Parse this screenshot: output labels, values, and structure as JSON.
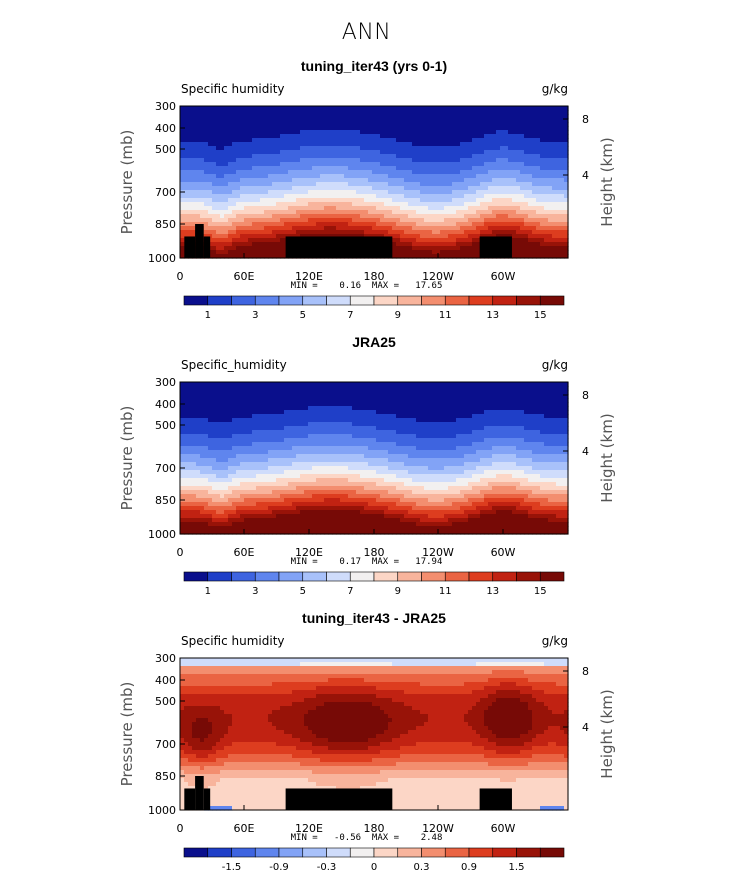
{
  "suptitle": "ANN",
  "chart_data": [
    {
      "type": "heatmap",
      "title": "tuning_iter43 (yrs 0-1)",
      "left_label": "Specific humidity",
      "right_label": "g/kg",
      "ylabel": "Pressure (mb)",
      "ylabel_right": "Height (km)",
      "y_ticks": [
        "300",
        "400",
        "500",
        "700",
        "850",
        "1000"
      ],
      "y_right_ticks": [
        "8",
        "4"
      ],
      "x_ticks": [
        "0",
        "60E",
        "120E",
        "180",
        "120W",
        "60W"
      ],
      "min_label": "MIN =",
      "min_value": "0.16",
      "max_label": "MAX =",
      "max_value": "17.65",
      "colorbar_ticks": [
        "1",
        "3",
        "5",
        "7",
        "9",
        "11",
        "13",
        "15"
      ],
      "colorbar_colors": [
        "#0a0f8c",
        "#1f3fc8",
        "#3e64e0",
        "#5f85ee",
        "#82a3f6",
        "#a8c1fa",
        "#cfdcfb",
        "#f2f0f0",
        "#fcd6c6",
        "#f8b49c",
        "#f38e6f",
        "#ea6443",
        "#dd3d1f",
        "#c12212",
        "#981308",
        "#770a06"
      ],
      "field": "humidity"
    },
    {
      "type": "heatmap",
      "title": "JRA25",
      "left_label": "Specific_humidity",
      "right_label": "g/kg",
      "ylabel": "Pressure (mb)",
      "ylabel_right": "Height (km)",
      "y_ticks": [
        "300",
        "400",
        "500",
        "700",
        "850",
        "1000"
      ],
      "y_right_ticks": [
        "8",
        "4"
      ],
      "x_ticks": [
        "0",
        "60E",
        "120E",
        "180",
        "120W",
        "60W"
      ],
      "min_label": "MIN =",
      "min_value": "0.17",
      "max_label": "MAX =",
      "max_value": "17.94",
      "colorbar_ticks": [
        "1",
        "3",
        "5",
        "7",
        "9",
        "11",
        "13",
        "15"
      ],
      "colorbar_colors": [
        "#0a0f8c",
        "#1f3fc8",
        "#3e64e0",
        "#5f85ee",
        "#82a3f6",
        "#a8c1fa",
        "#cfdcfb",
        "#f2f0f0",
        "#fcd6c6",
        "#f8b49c",
        "#f38e6f",
        "#ea6443",
        "#dd3d1f",
        "#c12212",
        "#981308",
        "#770a06"
      ],
      "field": "humidity_ref"
    },
    {
      "type": "heatmap",
      "title": "tuning_iter43 - JRA25",
      "left_label": "Specific humidity",
      "right_label": "g/kg",
      "ylabel": "Pressure (mb)",
      "ylabel_right": "Height (km)",
      "y_ticks": [
        "300",
        "400",
        "500",
        "700",
        "850",
        "1000"
      ],
      "y_right_ticks": [
        "8",
        "4"
      ],
      "x_ticks": [
        "0",
        "60E",
        "120E",
        "180",
        "120W",
        "60W"
      ],
      "min_label": "MIN =",
      "min_value": "-0.56",
      "max_label": "MAX =",
      "max_value": "2.48",
      "colorbar_ticks": [
        "-1.5",
        "-0.9",
        "-0.3",
        "0",
        "0.3",
        "0.9",
        "1.5"
      ],
      "colorbar_colors": [
        "#0a0f8c",
        "#1f3fc8",
        "#3e64e0",
        "#5f85ee",
        "#82a3f6",
        "#a8c1fa",
        "#cfdcfb",
        "#f2f0f0",
        "#fcd6c6",
        "#f8b49c",
        "#f38e6f",
        "#ea6443",
        "#dd3d1f",
        "#c12212",
        "#981308",
        "#770a06"
      ],
      "field": "difference"
    }
  ]
}
